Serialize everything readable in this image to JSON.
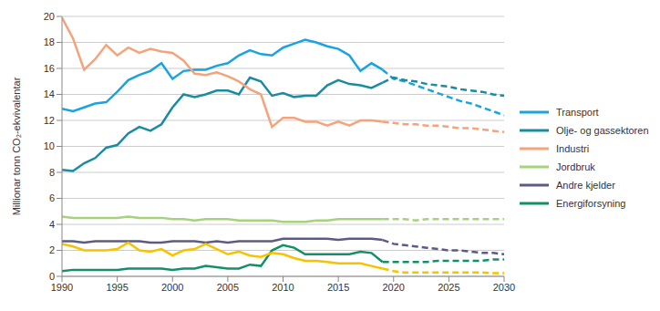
{
  "chart_data": {
    "type": "line",
    "y_label": "Millionar tonn CO₂-ekvivalentar",
    "x": [
      1990,
      1991,
      1992,
      1993,
      1994,
      1995,
      1996,
      1997,
      1998,
      1999,
      2000,
      2001,
      2002,
      2003,
      2004,
      2005,
      2006,
      2007,
      2008,
      2009,
      2010,
      2011,
      2012,
      2013,
      2014,
      2015,
      2016,
      2017,
      2018,
      2019,
      2020,
      2021,
      2022,
      2023,
      2024,
      2025,
      2026,
      2027,
      2028,
      2029,
      2030
    ],
    "xlim": [
      1990,
      2030
    ],
    "xticks": [
      1990,
      1995,
      2000,
      2005,
      2010,
      2015,
      2020,
      2025,
      2030
    ],
    "ylim": [
      0,
      20
    ],
    "yticks": [
      0,
      2,
      4,
      6,
      8,
      10,
      12,
      14,
      16,
      18,
      20
    ],
    "grid": true,
    "legend": "right",
    "series": [
      {
        "name": "Transport",
        "color": "#1aa3dd",
        "line_style": "solid",
        "values": [
          12.9,
          12.7,
          13.0,
          13.3,
          13.4,
          14.2,
          15.1,
          15.5,
          15.8,
          16.4,
          15.2,
          15.8,
          15.9,
          15.9,
          16.2,
          16.4,
          17.0,
          17.4,
          17.1,
          17.0,
          17.6,
          17.9,
          18.2,
          18.0,
          17.7,
          17.5,
          17.0,
          15.8,
          16.4,
          15.9,
          null,
          null,
          null,
          null,
          null,
          null,
          null,
          null,
          null,
          null,
          null
        ]
      },
      {
        "name": "Transport",
        "color": "#1aa3dd",
        "line_style": "dashed",
        "values": [
          null,
          null,
          null,
          null,
          null,
          null,
          null,
          null,
          null,
          null,
          null,
          null,
          null,
          null,
          null,
          null,
          null,
          null,
          null,
          null,
          null,
          null,
          null,
          null,
          null,
          null,
          null,
          null,
          null,
          15.9,
          15.2,
          15.0,
          14.7,
          14.4,
          14.1,
          13.8,
          13.5,
          13.3,
          13.0,
          12.7,
          12.4
        ]
      },
      {
        "name": "Olje- og gassektoren",
        "color": "#1b8ca0",
        "line_style": "solid",
        "values": [
          8.2,
          8.1,
          8.7,
          9.1,
          9.9,
          10.1,
          11.0,
          11.5,
          11.2,
          11.7,
          13.0,
          14.0,
          13.8,
          14.0,
          14.3,
          14.3,
          14.0,
          15.3,
          15.0,
          13.9,
          14.1,
          13.8,
          13.9,
          13.9,
          14.7,
          15.1,
          14.8,
          14.7,
          14.5,
          14.9,
          null,
          null,
          null,
          null,
          null,
          null,
          null,
          null,
          null,
          null,
          null
        ]
      },
      {
        "name": "Olje- og gassektoren",
        "color": "#1b8ca0",
        "line_style": "dashed",
        "values": [
          null,
          null,
          null,
          null,
          null,
          null,
          null,
          null,
          null,
          null,
          null,
          null,
          null,
          null,
          null,
          null,
          null,
          null,
          null,
          null,
          null,
          null,
          null,
          null,
          null,
          null,
          null,
          null,
          null,
          14.9,
          15.3,
          15.1,
          15.0,
          14.8,
          14.7,
          14.6,
          14.4,
          14.3,
          14.2,
          14.0,
          13.9
        ]
      },
      {
        "name": "Industri",
        "color": "#f4a37a",
        "line_style": "solid",
        "values": [
          19.9,
          18.3,
          15.9,
          16.7,
          17.8,
          17.0,
          17.6,
          17.2,
          17.5,
          17.3,
          17.2,
          16.6,
          15.6,
          15.5,
          15.7,
          15.4,
          15.0,
          14.4,
          14.0,
          11.5,
          12.2,
          12.2,
          11.9,
          11.9,
          11.6,
          11.9,
          11.6,
          12.0,
          12.0,
          11.9,
          null,
          null,
          null,
          null,
          null,
          null,
          null,
          null,
          null,
          null,
          null
        ]
      },
      {
        "name": "Industri",
        "color": "#f4a37a",
        "line_style": "dashed",
        "values": [
          null,
          null,
          null,
          null,
          null,
          null,
          null,
          null,
          null,
          null,
          null,
          null,
          null,
          null,
          null,
          null,
          null,
          null,
          null,
          null,
          null,
          null,
          null,
          null,
          null,
          null,
          null,
          null,
          null,
          11.9,
          11.8,
          11.7,
          11.7,
          11.6,
          11.6,
          11.5,
          11.4,
          11.4,
          11.3,
          11.2,
          11.1
        ]
      },
      {
        "name": "Jordbruk",
        "color": "#a6d27c",
        "line_style": "solid",
        "values": [
          4.6,
          4.5,
          4.5,
          4.5,
          4.5,
          4.5,
          4.6,
          4.5,
          4.5,
          4.5,
          4.4,
          4.4,
          4.3,
          4.4,
          4.4,
          4.4,
          4.3,
          4.3,
          4.3,
          4.3,
          4.2,
          4.2,
          4.2,
          4.3,
          4.3,
          4.4,
          4.4,
          4.4,
          4.4,
          4.4,
          null,
          null,
          null,
          null,
          null,
          null,
          null,
          null,
          null,
          null,
          null
        ]
      },
      {
        "name": "Jordbruk",
        "color": "#a6d27c",
        "line_style": "dashed",
        "values": [
          null,
          null,
          null,
          null,
          null,
          null,
          null,
          null,
          null,
          null,
          null,
          null,
          null,
          null,
          null,
          null,
          null,
          null,
          null,
          null,
          null,
          null,
          null,
          null,
          null,
          null,
          null,
          null,
          null,
          4.4,
          4.4,
          4.4,
          4.3,
          4.4,
          4.4,
          4.4,
          4.4,
          4.4,
          4.4,
          4.4,
          4.4
        ]
      },
      {
        "name": "Andre kjelder",
        "color": "#5d5a86",
        "line_style": "solid",
        "values": [
          2.7,
          2.7,
          2.6,
          2.7,
          2.7,
          2.7,
          2.7,
          2.7,
          2.6,
          2.6,
          2.7,
          2.7,
          2.7,
          2.6,
          2.7,
          2.6,
          2.7,
          2.7,
          2.7,
          2.7,
          2.9,
          2.9,
          2.9,
          2.9,
          2.9,
          2.8,
          2.9,
          2.9,
          2.9,
          2.8,
          null,
          null,
          null,
          null,
          null,
          null,
          null,
          null,
          null,
          null,
          null
        ]
      },
      {
        "name": "Andre kjelder",
        "color": "#5d5a86",
        "line_style": "dashed",
        "values": [
          null,
          null,
          null,
          null,
          null,
          null,
          null,
          null,
          null,
          null,
          null,
          null,
          null,
          null,
          null,
          null,
          null,
          null,
          null,
          null,
          null,
          null,
          null,
          null,
          null,
          null,
          null,
          null,
          null,
          2.8,
          2.5,
          2.4,
          2.3,
          2.2,
          2.1,
          2.0,
          2.0,
          1.9,
          1.8,
          1.8,
          1.7
        ]
      },
      {
        "name": "Energiforsyning",
        "color": "#149068",
        "line_style": "solid",
        "values": [
          0.4,
          0.5,
          0.5,
          0.5,
          0.5,
          0.5,
          0.6,
          0.6,
          0.6,
          0.6,
          0.5,
          0.6,
          0.6,
          0.8,
          0.7,
          0.6,
          0.6,
          0.9,
          0.8,
          2.0,
          2.4,
          2.2,
          1.7,
          1.7,
          1.7,
          1.7,
          1.7,
          1.9,
          1.8,
          1.1,
          null,
          null,
          null,
          null,
          null,
          null,
          null,
          null,
          null,
          null,
          null
        ]
      },
      {
        "name": "Energiforsyning",
        "color": "#149068",
        "line_style": "dashed",
        "values": [
          null,
          null,
          null,
          null,
          null,
          null,
          null,
          null,
          null,
          null,
          null,
          null,
          null,
          null,
          null,
          null,
          null,
          null,
          null,
          null,
          null,
          null,
          null,
          null,
          null,
          null,
          null,
          null,
          null,
          1.1,
          1.1,
          1.1,
          1.1,
          1.1,
          1.2,
          1.2,
          1.2,
          1.2,
          1.2,
          1.3,
          1.3
        ]
      },
      {
        "color": "#f7c200",
        "line_style": "solid",
        "values": [
          2.5,
          2.3,
          2.0,
          2.0,
          2.0,
          2.1,
          2.6,
          2.0,
          1.9,
          2.1,
          1.6,
          2.0,
          2.1,
          2.5,
          2.1,
          1.7,
          1.9,
          1.6,
          1.5,
          1.8,
          1.7,
          1.4,
          1.2,
          1.2,
          1.1,
          1.0,
          1.0,
          1.0,
          0.8,
          0.6,
          null,
          null,
          null,
          null,
          null,
          null,
          null,
          null,
          null,
          null,
          null
        ]
      },
      {
        "color": "#f7c200",
        "line_style": "dashed",
        "values": [
          null,
          null,
          null,
          null,
          null,
          null,
          null,
          null,
          null,
          null,
          null,
          null,
          null,
          null,
          null,
          null,
          null,
          null,
          null,
          null,
          null,
          null,
          null,
          null,
          null,
          null,
          null,
          null,
          null,
          0.6,
          0.4,
          0.3,
          0.3,
          0.3,
          0.3,
          0.3,
          0.3,
          0.3,
          0.3,
          0.25,
          0.25
        ]
      }
    ]
  }
}
